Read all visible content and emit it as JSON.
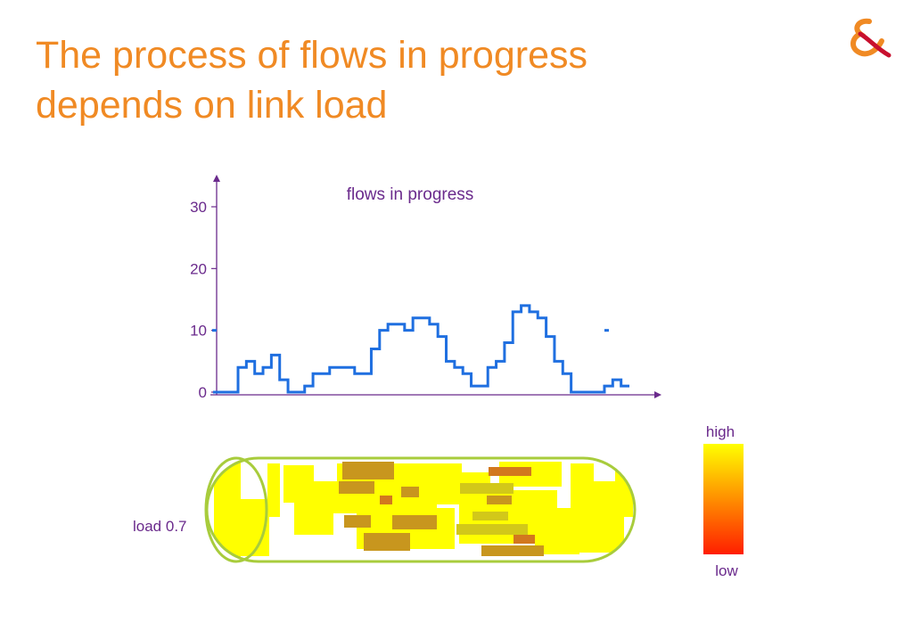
{
  "slide": {
    "title_line1": "The process of flows in progress",
    "title_line2": "depends on link load"
  },
  "logo": {
    "icon": "ampersand-logo",
    "color_primary": "#f08a24",
    "color_secondary": "#c8102e"
  },
  "chart_data": {
    "type": "line",
    "title": "flows in progress",
    "xlabel": "",
    "ylabel": "",
    "ylim": [
      0,
      30
    ],
    "y_ticks": [
      "0",
      "10",
      "20",
      "30"
    ],
    "grid": false,
    "color": "#1f6fe0",
    "x": [
      0,
      2,
      4,
      6,
      8,
      10,
      12,
      14,
      16,
      18,
      20,
      22,
      24,
      26,
      28,
      30,
      32,
      34,
      36,
      38,
      40,
      42,
      44,
      46,
      48,
      50,
      52,
      54,
      56,
      58,
      60,
      62,
      64,
      66,
      68,
      70,
      72,
      74,
      76,
      78,
      80,
      82,
      84,
      86,
      88,
      90,
      92,
      94,
      96,
      98,
      100
    ],
    "values": [
      0,
      0,
      0,
      4,
      5,
      3,
      4,
      6,
      2,
      0,
      0,
      1,
      3,
      3,
      4,
      4,
      4,
      3,
      3,
      7,
      10,
      11,
      11,
      10,
      12,
      12,
      11,
      9,
      5,
      4,
      3,
      1,
      1,
      4,
      5,
      8,
      13,
      14,
      13,
      12,
      9,
      5,
      3,
      0,
      0,
      0,
      0,
      1,
      2,
      1,
      1
    ],
    "isolated_points": [
      {
        "x": 94,
        "y": 10
      }
    ],
    "y_axis_mark": {
      "y": 10
    }
  },
  "load_band": {
    "label": "load 0.7",
    "colors": {
      "yellow": "#ffff00",
      "dark": "#c8961e",
      "olive": "#d2c819",
      "orange": "#d2781e",
      "outline": "#a8cc3c"
    }
  },
  "legend": {
    "high_label": "high",
    "low_label": "low",
    "gradient_top": "#ffff00",
    "gradient_bottom": "#ff1e00"
  },
  "text_color": "#6a2a8c"
}
